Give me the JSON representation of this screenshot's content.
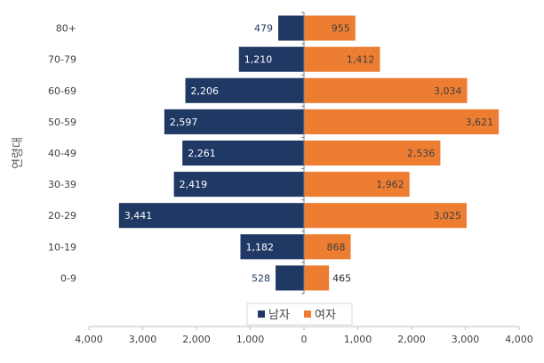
{
  "chart_data": {
    "type": "bar",
    "orientation": "horizontal",
    "layout": "population-pyramid",
    "ylabel": "연령대",
    "categories": [
      "80+",
      "70-79",
      "60-69",
      "50-59",
      "40-49",
      "30-39",
      "20-29",
      "10-19",
      "0-9"
    ],
    "series": [
      {
        "name": "남자",
        "color": "#203864",
        "side": "left",
        "values": [
          479,
          1210,
          2206,
          2597,
          2261,
          2419,
          3441,
          1182,
          528
        ]
      },
      {
        "name": "여자",
        "color": "#ED7D31",
        "side": "right",
        "values": [
          955,
          1412,
          3034,
          3621,
          2536,
          1962,
          3025,
          868,
          465
        ]
      }
    ],
    "xlim": [
      -4000,
      4000
    ],
    "xticks": [
      -4000,
      -3000,
      -2000,
      -1000,
      0,
      1000,
      2000,
      3000,
      4000
    ],
    "xtick_labels": [
      "4,000",
      "3,000",
      "2,000",
      "1,000",
      "0",
      "1,000",
      "2,000",
      "3,000",
      "4,000"
    ],
    "grid": false,
    "legend_position": "bottom-center"
  }
}
